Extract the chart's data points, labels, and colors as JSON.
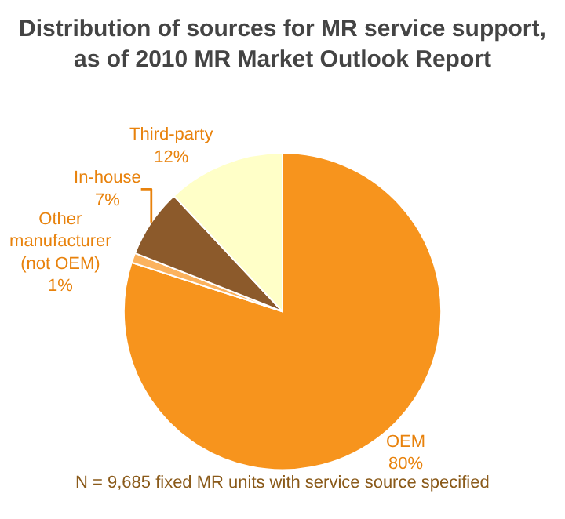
{
  "chart_data": {
    "type": "pie",
    "title": "Distribution of sources for MR service support, as of 2010 MR Market Outlook Report",
    "categories": [
      "OEM",
      "Other manufacturer (not OEM)",
      "In-house",
      "Third-party"
    ],
    "values": [
      80,
      1,
      7,
      12
    ],
    "colors": [
      "#f7941d",
      "#fbb25e",
      "#8c5a2b",
      "#ffffc8"
    ],
    "value_labels": [
      "80%",
      "1%",
      "7%",
      "12%"
    ],
    "annotations": [
      "N = 9,685 fixed MR units with service source specified"
    ],
    "legend": false
  }
}
